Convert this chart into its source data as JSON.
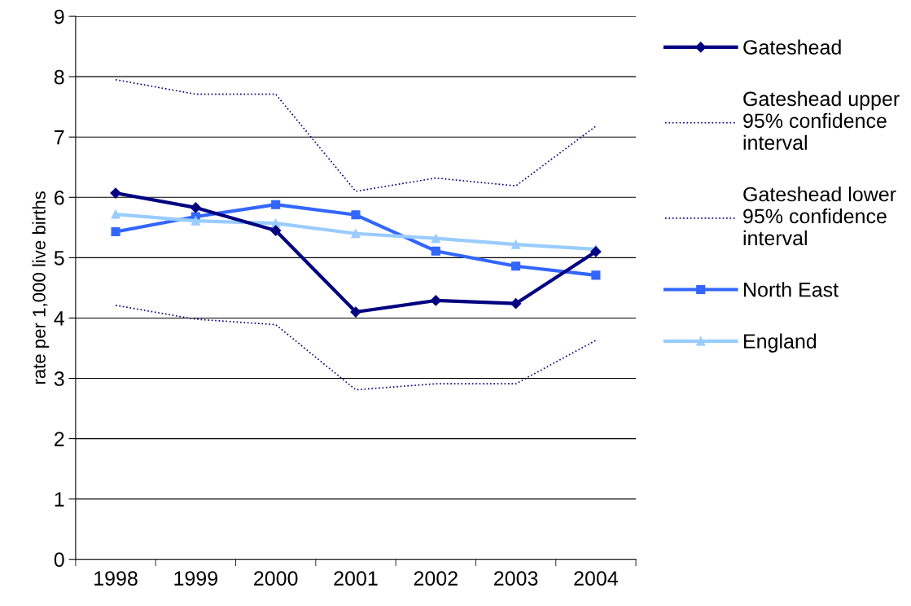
{
  "chart_data": {
    "type": "line",
    "ylabel": "rate per 1,000 live births",
    "categories": [
      "1998",
      "1999",
      "2000",
      "2001",
      "2002",
      "2003",
      "2004"
    ],
    "series": [
      {
        "name": "Gateshead",
        "color": "#000080",
        "marker": "diamond",
        "line_style": "solid",
        "values": [
          6.07,
          5.83,
          5.45,
          4.1,
          4.29,
          4.24,
          5.1
        ]
      },
      {
        "name": "Gateshead upper\n95% confidence\ninterval",
        "color": "#000080",
        "marker": "none",
        "line_style": "dotted",
        "values": [
          7.95,
          7.71,
          7.71,
          6.1,
          6.32,
          6.19,
          7.18
        ]
      },
      {
        "name": "Gateshead lower\n95% confidence\ninterval",
        "color": "#000080",
        "marker": "none",
        "line_style": "dotted",
        "values": [
          4.21,
          3.98,
          3.89,
          2.81,
          2.91,
          2.91,
          3.63
        ]
      },
      {
        "name": "North East",
        "color": "#3366ff",
        "marker": "square",
        "line_style": "solid",
        "values": [
          5.43,
          5.68,
          5.88,
          5.71,
          5.11,
          4.86,
          4.71
        ]
      },
      {
        "name": "England",
        "color": "#99ccff",
        "marker": "triangle",
        "line_style": "solid",
        "values": [
          5.72,
          5.61,
          5.57,
          5.4,
          5.32,
          5.22,
          5.14
        ]
      }
    ],
    "ylim": [
      0,
      9
    ],
    "yticks": [
      0,
      1,
      2,
      3,
      4,
      5,
      6,
      7,
      8,
      9
    ],
    "grid": "y",
    "legend": "right"
  }
}
